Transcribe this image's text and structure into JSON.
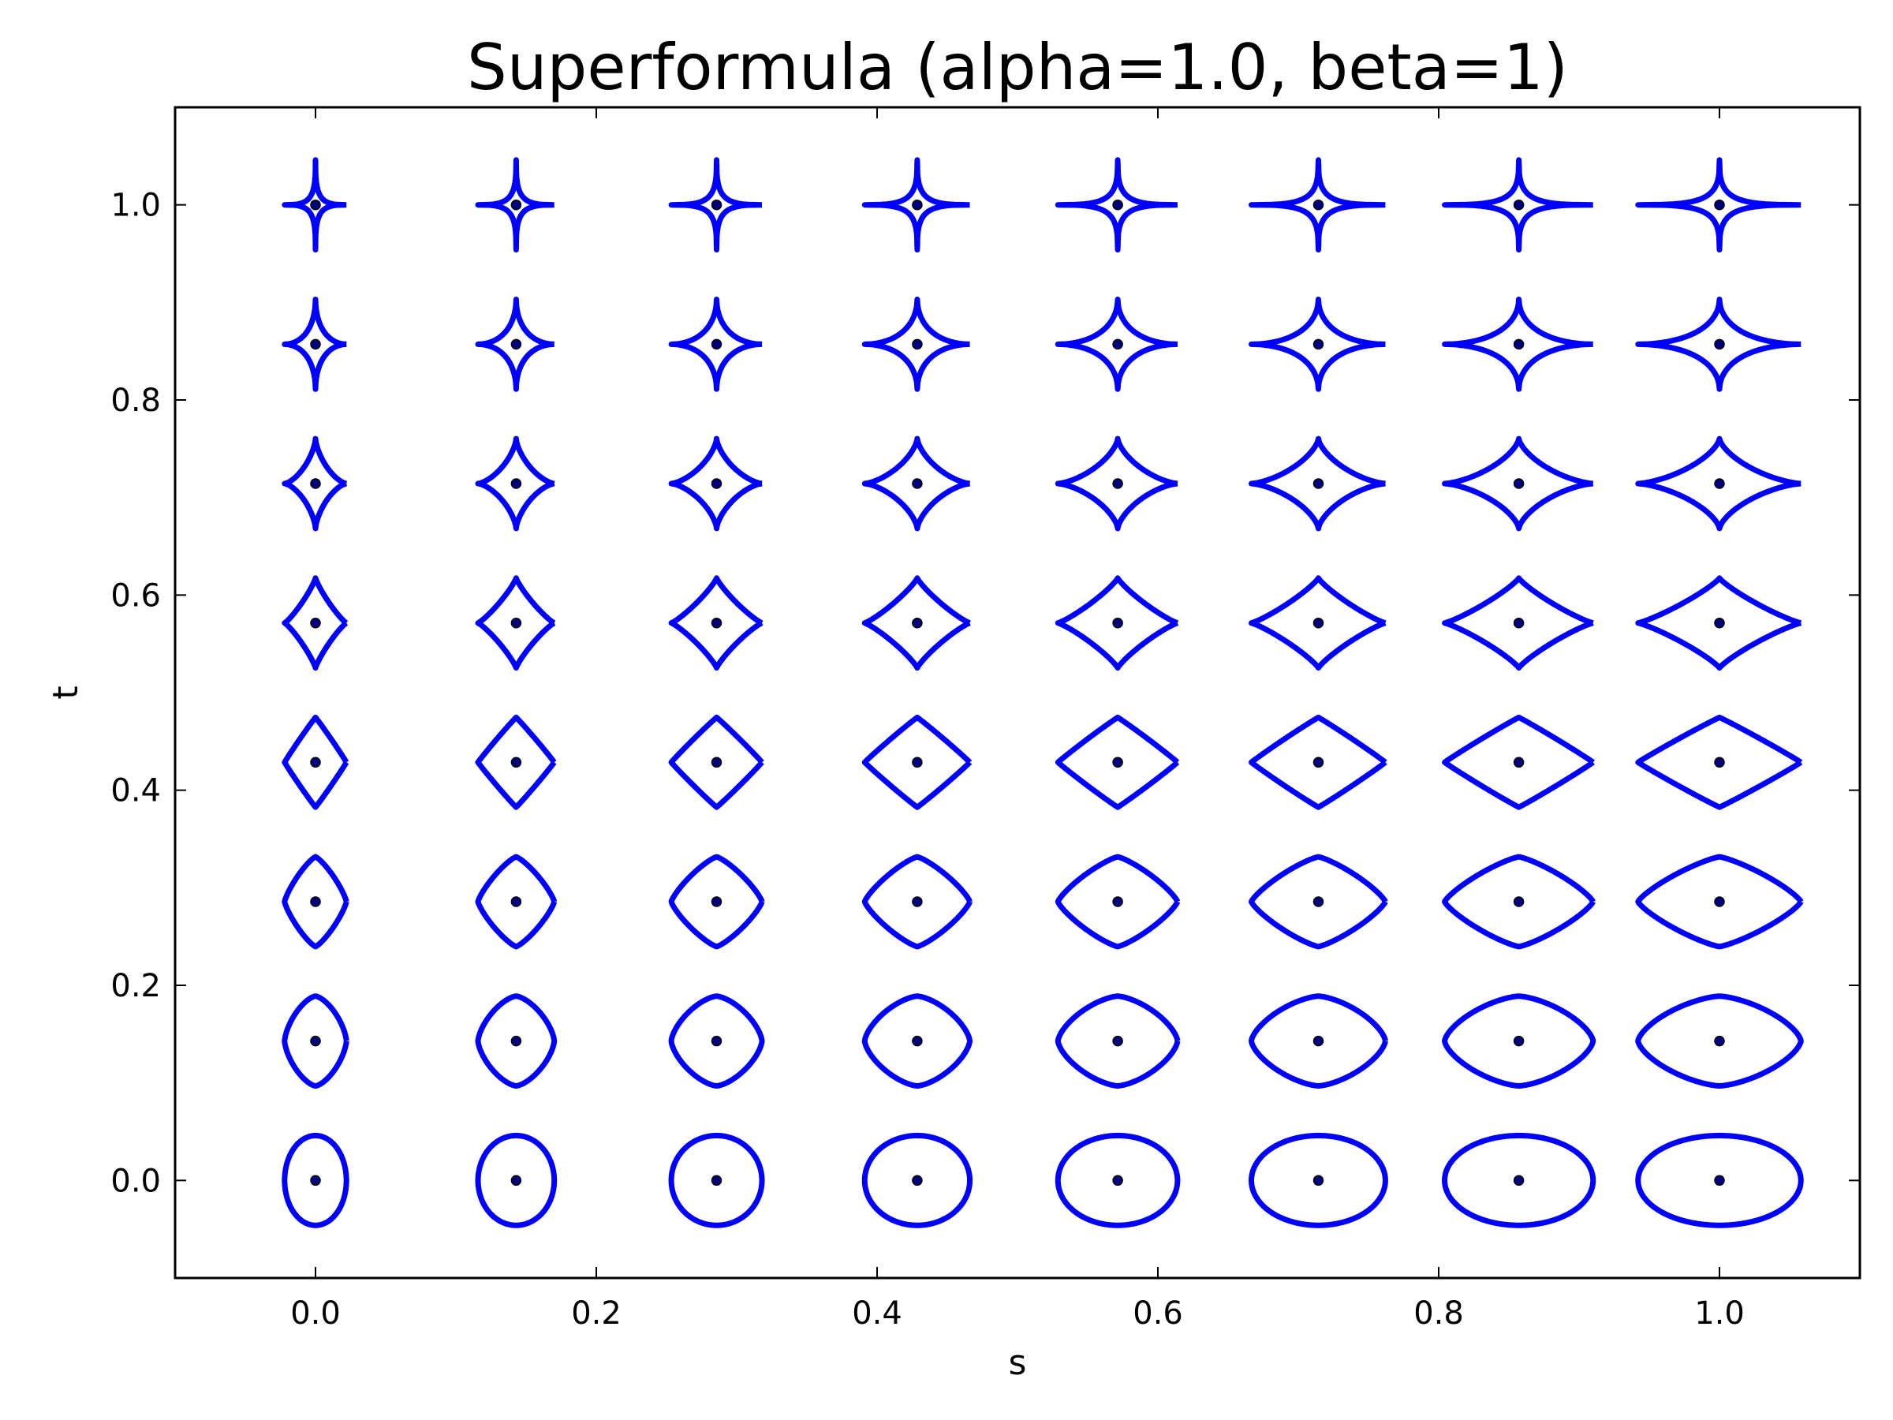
{
  "chart_data": {
    "type": "scatter",
    "title": "Superformula (alpha=1.0, beta=1)",
    "xlabel": "s",
    "ylabel": "t",
    "xlim": [
      -0.1,
      1.1
    ],
    "ylim": [
      -0.1,
      1.1
    ],
    "xticks": [
      "0.0",
      "0.2",
      "0.4",
      "0.6",
      "0.8",
      "1.0"
    ],
    "yticks": [
      "0.0",
      "0.2",
      "0.4",
      "0.6",
      "0.8",
      "1.0"
    ],
    "grid": false,
    "curve_color": "#0000ff",
    "point_color": "#000080",
    "s_values": [
      0.0,
      0.1429,
      0.2857,
      0.4286,
      0.5714,
      0.7143,
      0.8571,
      1.0
    ],
    "t_values": [
      0.0,
      0.1429,
      0.2857,
      0.4286,
      0.5714,
      0.7143,
      0.8571,
      1.0
    ]
  }
}
